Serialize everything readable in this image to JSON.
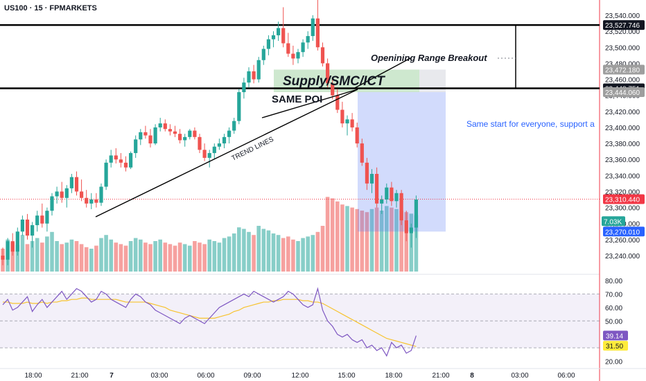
{
  "header": {
    "title": "US100 · 15 · FPMARKETS"
  },
  "annotations": {
    "opening_range": "Openining Range Breakout",
    "supply": "Supply/SMC/ICT",
    "same_poi": "SAME POI",
    "trend_lines": "TREND LINES",
    "note": "Same start for everyone, support a"
  },
  "price_axis": {
    "ticks": [
      "23,540.000",
      "23,520.000",
      "23,500.000",
      "23,480.000",
      "23,460.000",
      "23,440.000",
      "23,420.000",
      "23,400.000",
      "23,380.000",
      "23,360.000",
      "23,340.000",
      "23,320.000",
      "23,300.000",
      "23,280.000",
      "23,260.000",
      "23,240.000"
    ],
    "labels": [
      {
        "text": "23,527.746",
        "value": 23527.746,
        "bg": "#131722",
        "fg": "#ffffff"
      },
      {
        "text": "23,472.180",
        "value": 23472.18,
        "bg": "#9e9e9e",
        "fg": "#ffffff"
      },
      {
        "text": "23,448.751",
        "value": 23448.751,
        "bg": "#131722",
        "fg": "#ffffff"
      },
      {
        "text": "23,444.060",
        "value": 23444.06,
        "bg": "#9e9e9e",
        "fg": "#ffffff"
      },
      {
        "text": "23,310.440",
        "value": 23310.44,
        "bg": "#f23645",
        "fg": "#ffffff"
      },
      {
        "text": "7.03K",
        "value": 23283.0,
        "bg": "#26a69a",
        "fg": "#ffffff"
      },
      {
        "text": "23,270.010",
        "value": 23270.01,
        "bg": "#2962ff",
        "fg": "#ffffff"
      }
    ]
  },
  "rsi_axis": {
    "ticks": [
      "80.00",
      "70.00",
      "60.00",
      "50.00",
      "40.00",
      "30.00",
      "20.00"
    ],
    "labels": [
      {
        "text": "39.14",
        "value": 39.14,
        "bg": "#7e57c2",
        "fg": "#ffffff"
      },
      {
        "text": "31.50",
        "value": 31.5,
        "bg": "#ffeb3b",
        "fg": "#131722"
      }
    ]
  },
  "time_axis": {
    "ticks": [
      "18:00",
      "21:00",
      "7",
      "03:00",
      "06:00",
      "09:00",
      "12:00",
      "15:00",
      "18:00",
      "21:00",
      "8",
      "03:00",
      "06:00"
    ]
  },
  "colors": {
    "up": "#26a69a",
    "down": "#ef5350",
    "rsi": "#7e57c2",
    "rsi_ma": "#f7c32e",
    "zone_green": "#a5d6a7",
    "zone_blue": "#5c7cf4",
    "last_price": "#f23645"
  },
  "chart_data": {
    "type": "candlestick",
    "price_range": [
      23220,
      23560
    ],
    "rsi_range": [
      15,
      85
    ],
    "last_price": 23310.44,
    "candles": [
      [
        23240,
        23250,
        23228,
        23235
      ],
      [
        23235,
        23262,
        23228,
        23258
      ],
      [
        23258,
        23268,
        23240,
        23245
      ],
      [
        23245,
        23275,
        23240,
        23270
      ],
      [
        23270,
        23290,
        23265,
        23285
      ],
      [
        23285,
        23292,
        23260,
        23265
      ],
      [
        23265,
        23282,
        23250,
        23278
      ],
      [
        23278,
        23296,
        23270,
        23290
      ],
      [
        23290,
        23305,
        23275,
        23280
      ],
      [
        23280,
        23300,
        23270,
        23296
      ],
      [
        23296,
        23318,
        23290,
        23314
      ],
      [
        23314,
        23326,
        23305,
        23320
      ],
      [
        23320,
        23332,
        23306,
        23312
      ],
      [
        23312,
        23328,
        23300,
        23324
      ],
      [
        23324,
        23342,
        23318,
        23338
      ],
      [
        23338,
        23345,
        23315,
        23320
      ],
      [
        23320,
        23335,
        23308,
        23312
      ],
      [
        23312,
        23322,
        23300,
        23305
      ],
      [
        23305,
        23318,
        23298,
        23310
      ],
      [
        23310,
        23318,
        23300,
        23306
      ],
      [
        23306,
        23330,
        23302,
        23326
      ],
      [
        23326,
        23360,
        23322,
        23356
      ],
      [
        23356,
        23372,
        23350,
        23365
      ],
      [
        23365,
        23374,
        23355,
        23360
      ],
      [
        23360,
        23368,
        23350,
        23356
      ],
      [
        23356,
        23364,
        23345,
        23350
      ],
      [
        23350,
        23370,
        23348,
        23368
      ],
      [
        23368,
        23390,
        23362,
        23385
      ],
      [
        23385,
        23398,
        23378,
        23394
      ],
      [
        23394,
        23402,
        23386,
        23390
      ],
      [
        23390,
        23398,
        23375,
        23380
      ],
      [
        23380,
        23404,
        23378,
        23400
      ],
      [
        23400,
        23412,
        23395,
        23405
      ],
      [
        23405,
        23410,
        23395,
        23398
      ],
      [
        23398,
        23404,
        23390,
        23395
      ],
      [
        23395,
        23402,
        23388,
        23392
      ],
      [
        23392,
        23398,
        23380,
        23384
      ],
      [
        23384,
        23392,
        23376,
        23388
      ],
      [
        23388,
        23398,
        23385,
        23396
      ],
      [
        23396,
        23400,
        23385,
        23388
      ],
      [
        23388,
        23392,
        23368,
        23372
      ],
      [
        23372,
        23380,
        23358,
        23362
      ],
      [
        23362,
        23372,
        23350,
        23368
      ],
      [
        23368,
        23380,
        23360,
        23376
      ],
      [
        23376,
        23386,
        23372,
        23380
      ],
      [
        23380,
        23392,
        23374,
        23388
      ],
      [
        23388,
        23400,
        23380,
        23396
      ],
      [
        23396,
        23412,
        23392,
        23408
      ],
      [
        23408,
        23448,
        23404,
        23444
      ],
      [
        23444,
        23462,
        23436,
        23456
      ],
      [
        23456,
        23475,
        23450,
        23470
      ],
      [
        23470,
        23478,
        23455,
        23460
      ],
      [
        23460,
        23488,
        23456,
        23484
      ],
      [
        23484,
        23502,
        23478,
        23498
      ],
      [
        23498,
        23515,
        23490,
        23510
      ],
      [
        23510,
        23520,
        23500,
        23515
      ],
      [
        23515,
        23532,
        23508,
        23524
      ],
      [
        23524,
        23550,
        23500,
        23505
      ],
      [
        23505,
        23518,
        23488,
        23492
      ],
      [
        23492,
        23502,
        23478,
        23486
      ],
      [
        23486,
        23498,
        23480,
        23494
      ],
      [
        23494,
        23510,
        23488,
        23506
      ],
      [
        23506,
        23520,
        23498,
        23514
      ],
      [
        23514,
        23540,
        23508,
        23536
      ],
      [
        23536,
        23560,
        23496,
        23500
      ],
      [
        23500,
        23506,
        23476,
        23480
      ],
      [
        23480,
        23486,
        23450,
        23455
      ],
      [
        23455,
        23462,
        23435,
        23440
      ],
      [
        23440,
        23448,
        23418,
        23422
      ],
      [
        23422,
        23432,
        23400,
        23405
      ],
      [
        23405,
        23415,
        23390,
        23410
      ],
      [
        23410,
        23418,
        23395,
        23400
      ],
      [
        23400,
        23406,
        23375,
        23380
      ],
      [
        23380,
        23386,
        23352,
        23356
      ],
      [
        23356,
        23362,
        23322,
        23330
      ],
      [
        23330,
        23348,
        23318,
        23342
      ],
      [
        23342,
        23350,
        23300,
        23305
      ],
      [
        23305,
        23315,
        23292,
        23310
      ],
      [
        23310,
        23330,
        23305,
        23325
      ],
      [
        23325,
        23332,
        23302,
        23308
      ],
      [
        23308,
        23322,
        23300,
        23318
      ],
      [
        23318,
        23322,
        23278,
        23284
      ],
      [
        23284,
        23296,
        23258,
        23268
      ],
      [
        23268,
        23280,
        23250,
        23275
      ],
      [
        23275,
        23315,
        23262,
        23310
      ]
    ],
    "volume": [
      30,
      42,
      38,
      35,
      48,
      36,
      40,
      44,
      38,
      46,
      52,
      40,
      36,
      38,
      42,
      40,
      36,
      32,
      30,
      34,
      44,
      48,
      42,
      38,
      36,
      34,
      40,
      44,
      42,
      38,
      36,
      40,
      42,
      38,
      36,
      34,
      38,
      36,
      34,
      40,
      38,
      36,
      42,
      40,
      38,
      44,
      46,
      50,
      58,
      56,
      52,
      48,
      60,
      56,
      54,
      50,
      48,
      44,
      46,
      42,
      40,
      44,
      46,
      48,
      52,
      60,
      98,
      96,
      92,
      88,
      86,
      84,
      82,
      80,
      78,
      82,
      84,
      80,
      86,
      84,
      82,
      80,
      78,
      76,
      74
    ],
    "rsi": [
      62,
      66,
      58,
      60,
      64,
      68,
      57,
      62,
      66,
      60,
      64,
      68,
      72,
      66,
      70,
      74,
      72,
      68,
      64,
      66,
      72,
      70,
      66,
      64,
      62,
      60,
      66,
      70,
      68,
      64,
      62,
      58,
      56,
      54,
      52,
      50,
      48,
      52,
      54,
      52,
      50,
      48,
      52,
      56,
      60,
      62,
      64,
      66,
      68,
      70,
      68,
      72,
      70,
      68,
      66,
      64,
      66,
      68,
      72,
      70,
      66,
      62,
      60,
      62,
      74,
      58,
      50,
      46,
      40,
      38,
      40,
      36,
      34,
      36,
      30,
      32,
      28,
      30,
      24,
      34,
      30,
      32,
      26,
      28,
      39
    ],
    "rsi_ma": [
      64,
      64,
      63,
      63,
      63,
      64,
      63,
      63,
      64,
      63,
      64,
      64,
      65,
      65,
      66,
      66,
      67,
      67,
      66,
      66,
      66,
      66,
      66,
      66,
      65,
      64,
      64,
      64,
      64,
      64,
      63,
      62,
      61,
      60,
      58,
      57,
      56,
      55,
      54,
      53,
      52,
      52,
      52,
      52,
      53,
      54,
      55,
      57,
      58,
      60,
      61,
      62,
      63,
      64,
      64,
      65,
      65,
      66,
      66,
      66,
      66,
      65,
      65,
      64,
      64,
      63,
      61,
      59,
      57,
      55,
      53,
      51,
      49,
      47,
      45,
      43,
      41,
      39,
      37,
      36,
      35,
      34,
      33,
      32,
      31
    ]
  }
}
